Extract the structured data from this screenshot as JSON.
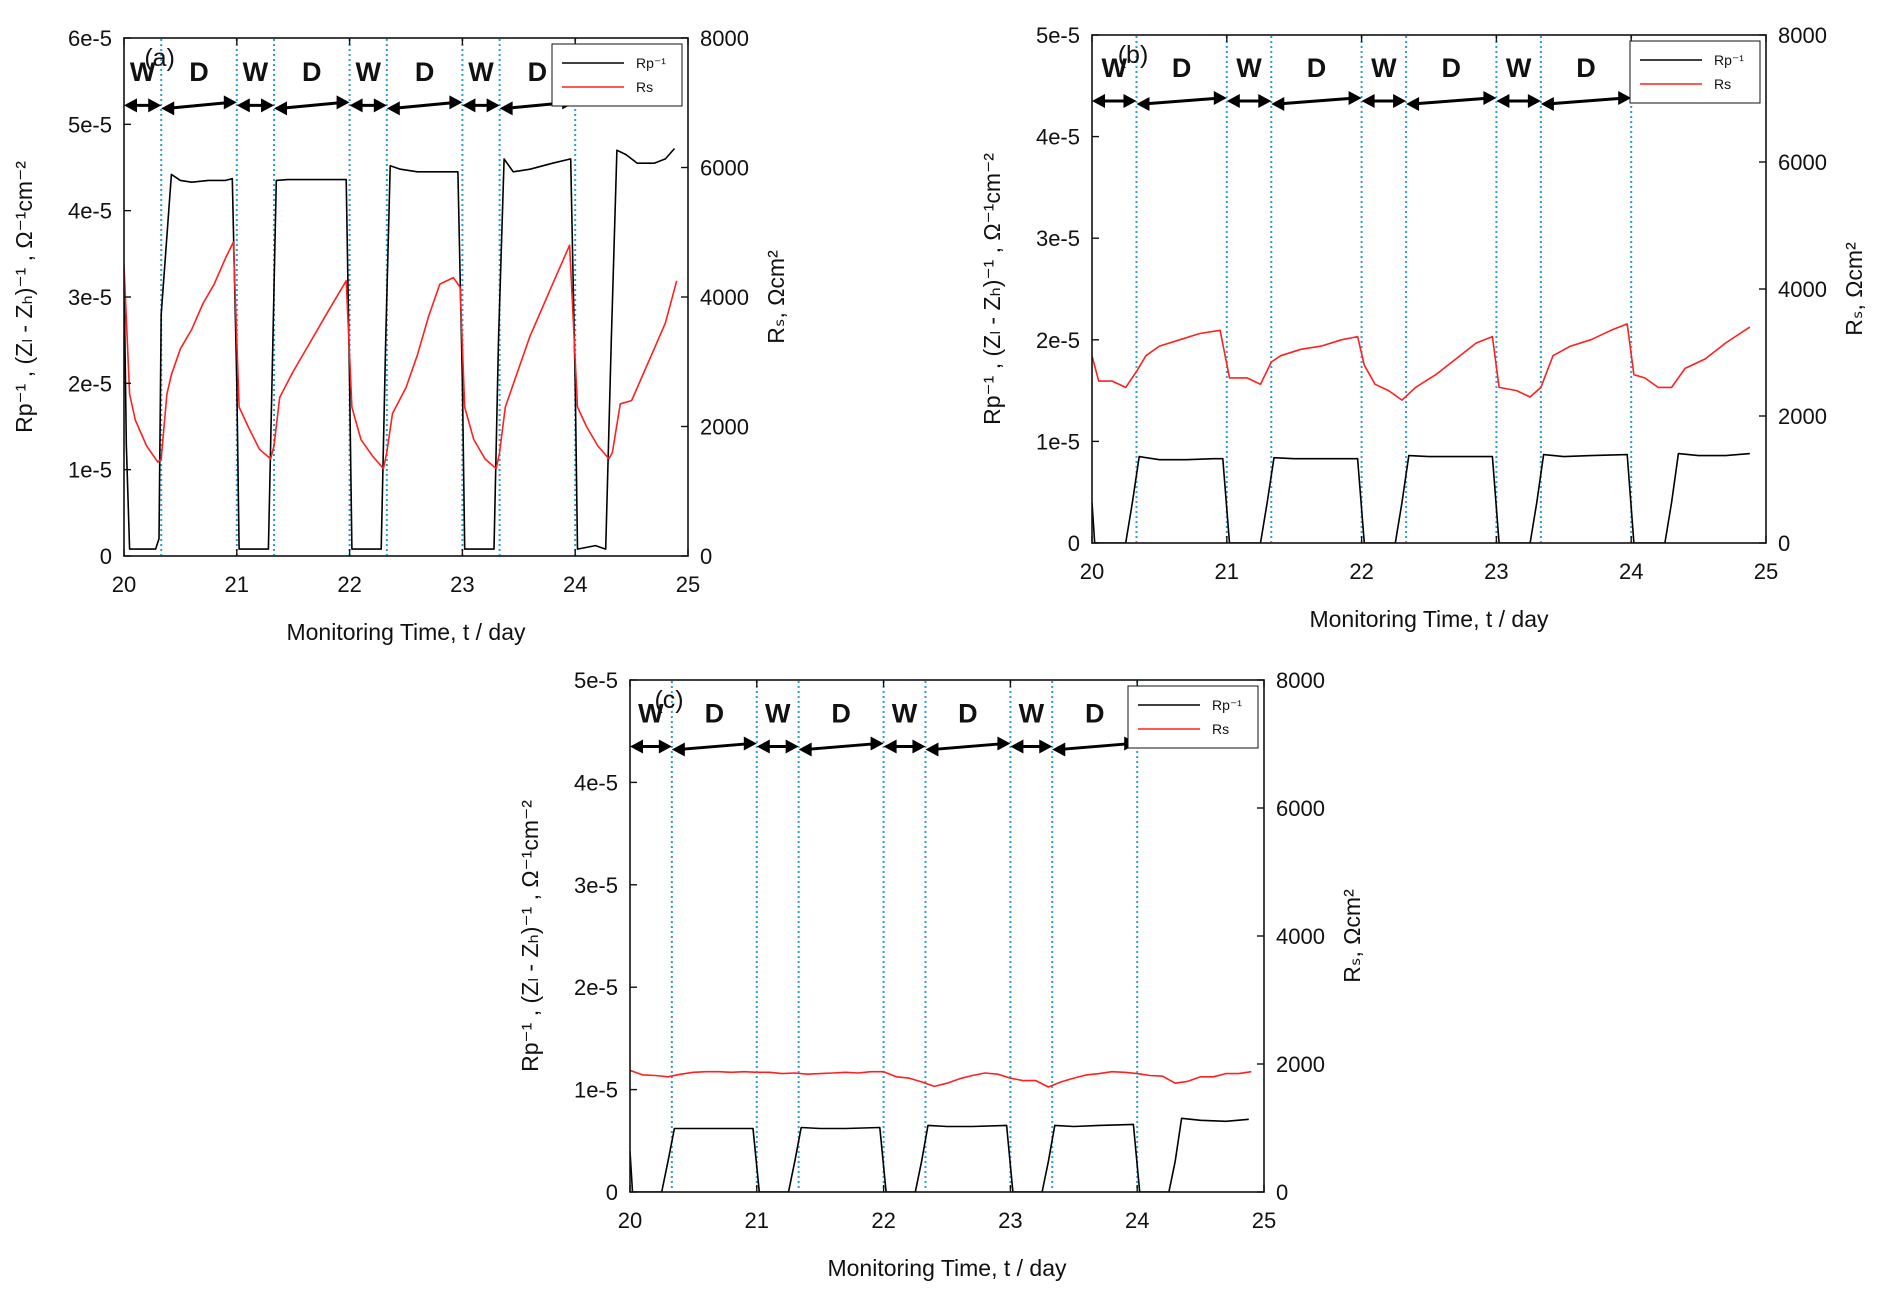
{
  "chart_data": [
    {
      "panel": "(a)",
      "type": "line",
      "xlabel": "Monitoring Time, t / day",
      "ylabel_left": "Rp⁻¹ , (Zₗ - Zₕ)⁻¹ , Ω⁻¹cm⁻²",
      "ylabel_right": "Rₛ, Ωcm²",
      "xlim": [
        20,
        25
      ],
      "ylim_left": [
        0,
        6e-05
      ],
      "ylim_right": [
        0,
        8000
      ],
      "xticks": [
        "20",
        "21",
        "22",
        "23",
        "24",
        "25"
      ],
      "yticks_left": [
        "0",
        "1e-5",
        "2e-5",
        "3e-5",
        "4e-5",
        "5e-5",
        "6e-5"
      ],
      "yticks_right": [
        "0",
        "2000",
        "4000",
        "6000",
        "8000"
      ],
      "phases": [
        "W",
        "D",
        "W",
        "D",
        "W",
        "D",
        "W",
        "D"
      ],
      "phase_boundaries": [
        20.33,
        21.0,
        21.33,
        22.0,
        22.33,
        23.0,
        23.33,
        24.0
      ],
      "legend": [
        "Rp⁻¹",
        "Rs"
      ],
      "series": [
        {
          "name": "Rp⁻¹",
          "color": "#000000",
          "axis": "left",
          "x": [
            20.0,
            20.02,
            20.05,
            20.28,
            20.31,
            20.33,
            20.42,
            20.5,
            20.6,
            20.75,
            20.9,
            20.96,
            21.0,
            21.02,
            21.28,
            21.32,
            21.35,
            21.45,
            21.6,
            21.8,
            21.97,
            22.0,
            22.02,
            22.28,
            22.32,
            22.36,
            22.45,
            22.6,
            22.8,
            22.96,
            23.0,
            23.02,
            23.28,
            23.32,
            23.37,
            23.45,
            23.6,
            23.8,
            23.96,
            24.0,
            24.02,
            24.18,
            24.27,
            24.32,
            24.37,
            24.45,
            24.55,
            24.7,
            24.8,
            24.88
          ],
          "y": [
            3.3e-05,
            1.3e-05,
            8e-07,
            8e-07,
            2e-06,
            2.8e-05,
            4.42e-05,
            4.35e-05,
            4.33e-05,
            4.35e-05,
            4.35e-05,
            4.37e-05,
            2e-05,
            8e-07,
            8e-07,
            2.5e-05,
            4.35e-05,
            4.36e-05,
            4.36e-05,
            4.36e-05,
            4.36e-05,
            2e-05,
            8e-07,
            8e-07,
            2.5e-05,
            4.52e-05,
            4.48e-05,
            4.45e-05,
            4.45e-05,
            4.45e-05,
            2e-05,
            8e-07,
            8e-07,
            2.5e-05,
            4.6e-05,
            4.45e-05,
            4.48e-05,
            4.55e-05,
            4.6e-05,
            2e-05,
            8e-07,
            1.2e-06,
            8e-07,
            2.5e-05,
            4.7e-05,
            4.65e-05,
            4.55e-05,
            4.55e-05,
            4.6e-05,
            4.72e-05
          ]
        },
        {
          "name": "Rs",
          "color": "#ff2020",
          "axis": "right",
          "x": [
            20.0,
            20.05,
            20.1,
            20.2,
            20.3,
            20.33,
            20.38,
            20.42,
            20.5,
            20.6,
            20.7,
            20.8,
            20.9,
            20.97,
            21.02,
            21.1,
            21.2,
            21.3,
            21.33,
            21.38,
            21.5,
            21.6,
            21.7,
            21.8,
            21.97,
            22.02,
            22.1,
            22.2,
            22.3,
            22.33,
            22.38,
            22.5,
            22.6,
            22.7,
            22.8,
            22.92,
            22.98,
            23.02,
            23.1,
            23.2,
            23.3,
            23.33,
            23.38,
            23.5,
            23.6,
            23.7,
            23.8,
            23.95,
            24.02,
            24.1,
            24.2,
            24.3,
            24.33,
            24.4,
            24.5,
            24.6,
            24.7,
            24.8,
            24.9
          ],
          "y": [
            4500,
            2500,
            2100,
            1700,
            1450,
            1500,
            2500,
            2800,
            3200,
            3500,
            3900,
            4200,
            4600,
            4850,
            2300,
            2000,
            1650,
            1500,
            1700,
            2450,
            2850,
            3150,
            3450,
            3750,
            4250,
            2300,
            1800,
            1550,
            1350,
            1600,
            2200,
            2600,
            3100,
            3700,
            4200,
            4300,
            4150,
            2300,
            1800,
            1500,
            1350,
            1600,
            2300,
            2900,
            3400,
            3800,
            4200,
            4800,
            2300,
            2000,
            1700,
            1500,
            1600,
            2350,
            2400,
            2800,
            3200,
            3600,
            4250
          ]
        }
      ]
    },
    {
      "panel": "(b)",
      "type": "line",
      "xlabel": "Monitoring Time, t / day",
      "ylabel_left": "Rp⁻¹ , (Zₗ - Zₕ)⁻¹ , Ω⁻¹cm⁻²",
      "ylabel_right": "Rₛ, Ωcm²",
      "xlim": [
        20,
        25
      ],
      "ylim_left": [
        0,
        5e-05
      ],
      "ylim_right": [
        0,
        8000
      ],
      "xticks": [
        "20",
        "21",
        "22",
        "23",
        "24",
        "25"
      ],
      "yticks_left": [
        "0",
        "1e-5",
        "2e-5",
        "3e-5",
        "4e-5",
        "5e-5"
      ],
      "yticks_right": [
        "0",
        "2000",
        "4000",
        "6000",
        "8000"
      ],
      "phases": [
        "W",
        "D",
        "W",
        "D",
        "W",
        "D",
        "W",
        "D"
      ],
      "phase_boundaries": [
        20.33,
        21.0,
        21.33,
        22.0,
        22.33,
        23.0,
        23.33,
        24.0
      ],
      "legend": [
        "Rp⁻¹",
        "Rs"
      ],
      "series": [
        {
          "name": "Rp⁻¹",
          "color": "#000000",
          "axis": "left",
          "x": [
            20.0,
            20.02,
            20.05,
            20.25,
            20.3,
            20.35,
            20.5,
            20.7,
            20.9,
            20.97,
            21.02,
            21.25,
            21.3,
            21.35,
            21.5,
            21.7,
            21.97,
            22.02,
            22.25,
            22.3,
            22.35,
            22.5,
            22.7,
            22.97,
            23.02,
            23.25,
            23.3,
            23.35,
            23.5,
            23.7,
            23.97,
            24.02,
            24.25,
            24.3,
            24.35,
            24.5,
            24.7,
            24.88
          ],
          "y": [
            4e-06,
            0,
            0,
            0,
            4e-06,
            8.5e-06,
            8.2e-06,
            8.2e-06,
            8.3e-06,
            8.3e-06,
            0,
            0,
            4e-06,
            8.4e-06,
            8.3e-06,
            8.3e-06,
            8.3e-06,
            0,
            0,
            4e-06,
            8.6e-06,
            8.5e-06,
            8.5e-06,
            8.5e-06,
            0,
            0,
            4e-06,
            8.7e-06,
            8.5e-06,
            8.6e-06,
            8.7e-06,
            0,
            0,
            4e-06,
            8.8e-06,
            8.6e-06,
            8.6e-06,
            8.8e-06
          ]
        },
        {
          "name": "Rs",
          "color": "#ff2020",
          "axis": "right",
          "x": [
            20.0,
            20.05,
            20.15,
            20.25,
            20.33,
            20.4,
            20.5,
            20.65,
            20.8,
            20.95,
            21.02,
            21.15,
            21.25,
            21.33,
            21.4,
            21.55,
            21.7,
            21.85,
            21.97,
            22.02,
            22.1,
            22.2,
            22.3,
            22.4,
            22.55,
            22.7,
            22.85,
            22.97,
            23.02,
            23.15,
            23.25,
            23.33,
            23.42,
            23.55,
            23.7,
            23.85,
            23.97,
            24.02,
            24.1,
            24.2,
            24.3,
            24.4,
            24.55,
            24.7,
            24.88
          ],
          "y": [
            2950,
            2550,
            2550,
            2450,
            2700,
            2950,
            3100,
            3200,
            3300,
            3350,
            2600,
            2600,
            2500,
            2850,
            2950,
            3050,
            3100,
            3200,
            3250,
            2800,
            2500,
            2400,
            2250,
            2450,
            2650,
            2900,
            3150,
            3250,
            2450,
            2400,
            2300,
            2450,
            2950,
            3100,
            3200,
            3350,
            3450,
            2650,
            2600,
            2450,
            2450,
            2750,
            2900,
            3150,
            3400
          ]
        }
      ]
    },
    {
      "panel": "(c)",
      "type": "line",
      "xlabel": "Monitoring Time, t / day",
      "ylabel_left": "Rp⁻¹ , (Zₗ - Zₕ)⁻¹ , Ω⁻¹cm⁻²",
      "ylabel_right": "Rₛ, Ωcm²",
      "xlim": [
        20,
        25
      ],
      "ylim_left": [
        0,
        5e-05
      ],
      "ylim_right": [
        0,
        8000
      ],
      "xticks": [
        "20",
        "21",
        "22",
        "23",
        "24",
        "25"
      ],
      "yticks_left": [
        "0",
        "1e-5",
        "2e-5",
        "3e-5",
        "4e-5",
        "5e-5"
      ],
      "yticks_right": [
        "0",
        "2000",
        "4000",
        "6000",
        "8000"
      ],
      "phases": [
        "W",
        "D",
        "W",
        "D",
        "W",
        "D",
        "W",
        "D"
      ],
      "phase_boundaries": [
        20.33,
        21.0,
        21.33,
        22.0,
        22.33,
        23.0,
        23.33,
        24.0
      ],
      "legend": [
        "Rp⁻¹",
        "Rs"
      ],
      "series": [
        {
          "name": "Rp⁻¹",
          "color": "#000000",
          "axis": "left",
          "x": [
            20.0,
            20.02,
            20.05,
            20.25,
            20.3,
            20.35,
            20.5,
            20.7,
            20.9,
            20.97,
            21.02,
            21.25,
            21.3,
            21.35,
            21.5,
            21.7,
            21.97,
            22.02,
            22.25,
            22.3,
            22.35,
            22.5,
            22.7,
            22.97,
            23.02,
            23.25,
            23.3,
            23.35,
            23.5,
            23.7,
            23.97,
            24.02,
            24.25,
            24.3,
            24.35,
            24.5,
            24.7,
            24.88
          ],
          "y": [
            4e-06,
            0,
            0,
            0,
            3e-06,
            6.2e-06,
            6.2e-06,
            6.2e-06,
            6.2e-06,
            6.2e-06,
            0,
            0,
            3e-06,
            6.3e-06,
            6.2e-06,
            6.2e-06,
            6.3e-06,
            0,
            0,
            3e-06,
            6.5e-06,
            6.4e-06,
            6.4e-06,
            6.5e-06,
            0,
            0,
            3e-06,
            6.5e-06,
            6.4e-06,
            6.5e-06,
            6.6e-06,
            0,
            0,
            3e-06,
            7.2e-06,
            7e-06,
            6.9e-06,
            7.1e-06
          ]
        },
        {
          "name": "Rs",
          "color": "#ff2020",
          "axis": "right",
          "x": [
            20.0,
            20.1,
            20.2,
            20.3,
            20.4,
            20.5,
            20.6,
            20.7,
            20.8,
            20.9,
            21.0,
            21.1,
            21.2,
            21.3,
            21.4,
            21.5,
            21.6,
            21.7,
            21.8,
            21.9,
            22.0,
            22.1,
            22.2,
            22.3,
            22.4,
            22.5,
            22.6,
            22.7,
            22.8,
            22.9,
            23.0,
            23.1,
            23.2,
            23.3,
            23.4,
            23.5,
            23.6,
            23.7,
            23.8,
            23.9,
            24.0,
            24.1,
            24.2,
            24.3,
            24.4,
            24.5,
            24.6,
            24.7,
            24.8,
            24.9
          ],
          "y": [
            1900,
            1830,
            1820,
            1800,
            1840,
            1870,
            1880,
            1880,
            1870,
            1880,
            1870,
            1870,
            1850,
            1860,
            1840,
            1850,
            1860,
            1870,
            1860,
            1880,
            1880,
            1800,
            1780,
            1720,
            1650,
            1700,
            1770,
            1820,
            1860,
            1840,
            1780,
            1740,
            1740,
            1640,
            1720,
            1780,
            1830,
            1850,
            1880,
            1870,
            1850,
            1820,
            1810,
            1700,
            1730,
            1800,
            1800,
            1850,
            1850,
            1880
          ]
        }
      ]
    }
  ]
}
